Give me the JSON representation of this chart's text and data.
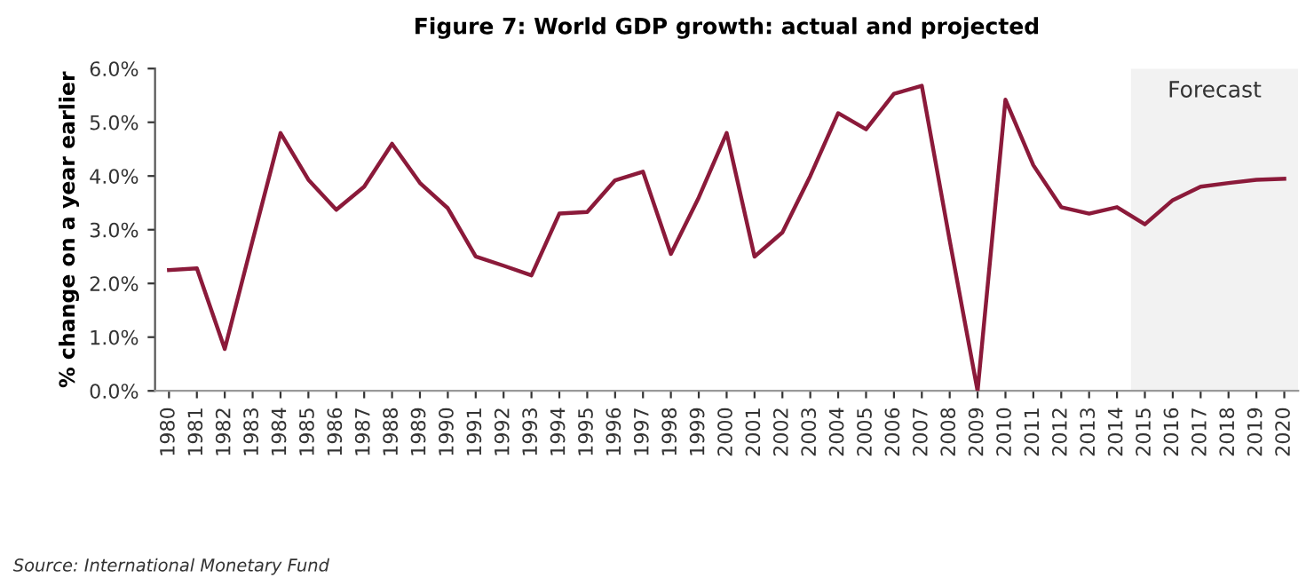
{
  "chart_data": {
    "type": "line",
    "title": "Figure 7: World GDP growth: actual and projected",
    "ylabel": "% change on a year earlier",
    "x": [
      1980,
      1981,
      1982,
      1983,
      1984,
      1985,
      1986,
      1987,
      1988,
      1989,
      1990,
      1991,
      1992,
      1993,
      1994,
      1995,
      1996,
      1997,
      1998,
      1999,
      2000,
      2001,
      2002,
      2003,
      2004,
      2005,
      2006,
      2007,
      2008,
      2009,
      2010,
      2011,
      2012,
      2013,
      2014,
      2015,
      2016,
      2017,
      2018,
      2019,
      2020
    ],
    "series": [
      {
        "color": "#8b1a3a",
        "values": [
          2.25,
          2.28,
          0.78,
          2.8,
          4.8,
          3.93,
          3.37,
          3.8,
          4.6,
          3.87,
          3.4,
          2.5,
          2.33,
          2.15,
          3.3,
          3.33,
          3.92,
          4.08,
          2.55,
          3.6,
          4.8,
          2.5,
          2.95,
          4.0,
          5.17,
          4.87,
          5.53,
          5.68,
          2.8,
          0.0,
          5.42,
          4.2,
          3.42,
          3.3,
          3.42,
          3.1,
          3.55,
          3.8,
          3.87,
          3.93,
          3.95
        ]
      }
    ],
    "xlim": [
      1979.5,
      2020.5
    ],
    "xticks": [
      1980,
      1981,
      1982,
      1983,
      1984,
      1985,
      1986,
      1987,
      1988,
      1989,
      1990,
      1991,
      1992,
      1993,
      1994,
      1995,
      1996,
      1997,
      1998,
      1999,
      2000,
      2001,
      2002,
      2003,
      2004,
      2005,
      2006,
      2007,
      2008,
      2009,
      2010,
      2011,
      2012,
      2013,
      2014,
      2015,
      2016,
      2017,
      2018,
      2019,
      2020
    ],
    "ylim": [
      0,
      6
    ],
    "yticks": [
      {
        "value": 0,
        "label": "0.0%"
      },
      {
        "value": 1,
        "label": "1.0%"
      },
      {
        "value": 2,
        "label": "2.0%"
      },
      {
        "value": 3,
        "label": "3.0%"
      },
      {
        "value": 4,
        "label": "4.0%"
      },
      {
        "value": 5,
        "label": "5.0%"
      },
      {
        "value": 6,
        "label": "6.0%"
      }
    ],
    "bands": [
      {
        "axis": "x",
        "from": 2014.5,
        "to": 2020.5,
        "label": "Forecast",
        "color": "#f2f2f2"
      }
    ],
    "annotations": [
      "Source: International Monetary Fund"
    ],
    "grid": false,
    "legend": false
  }
}
